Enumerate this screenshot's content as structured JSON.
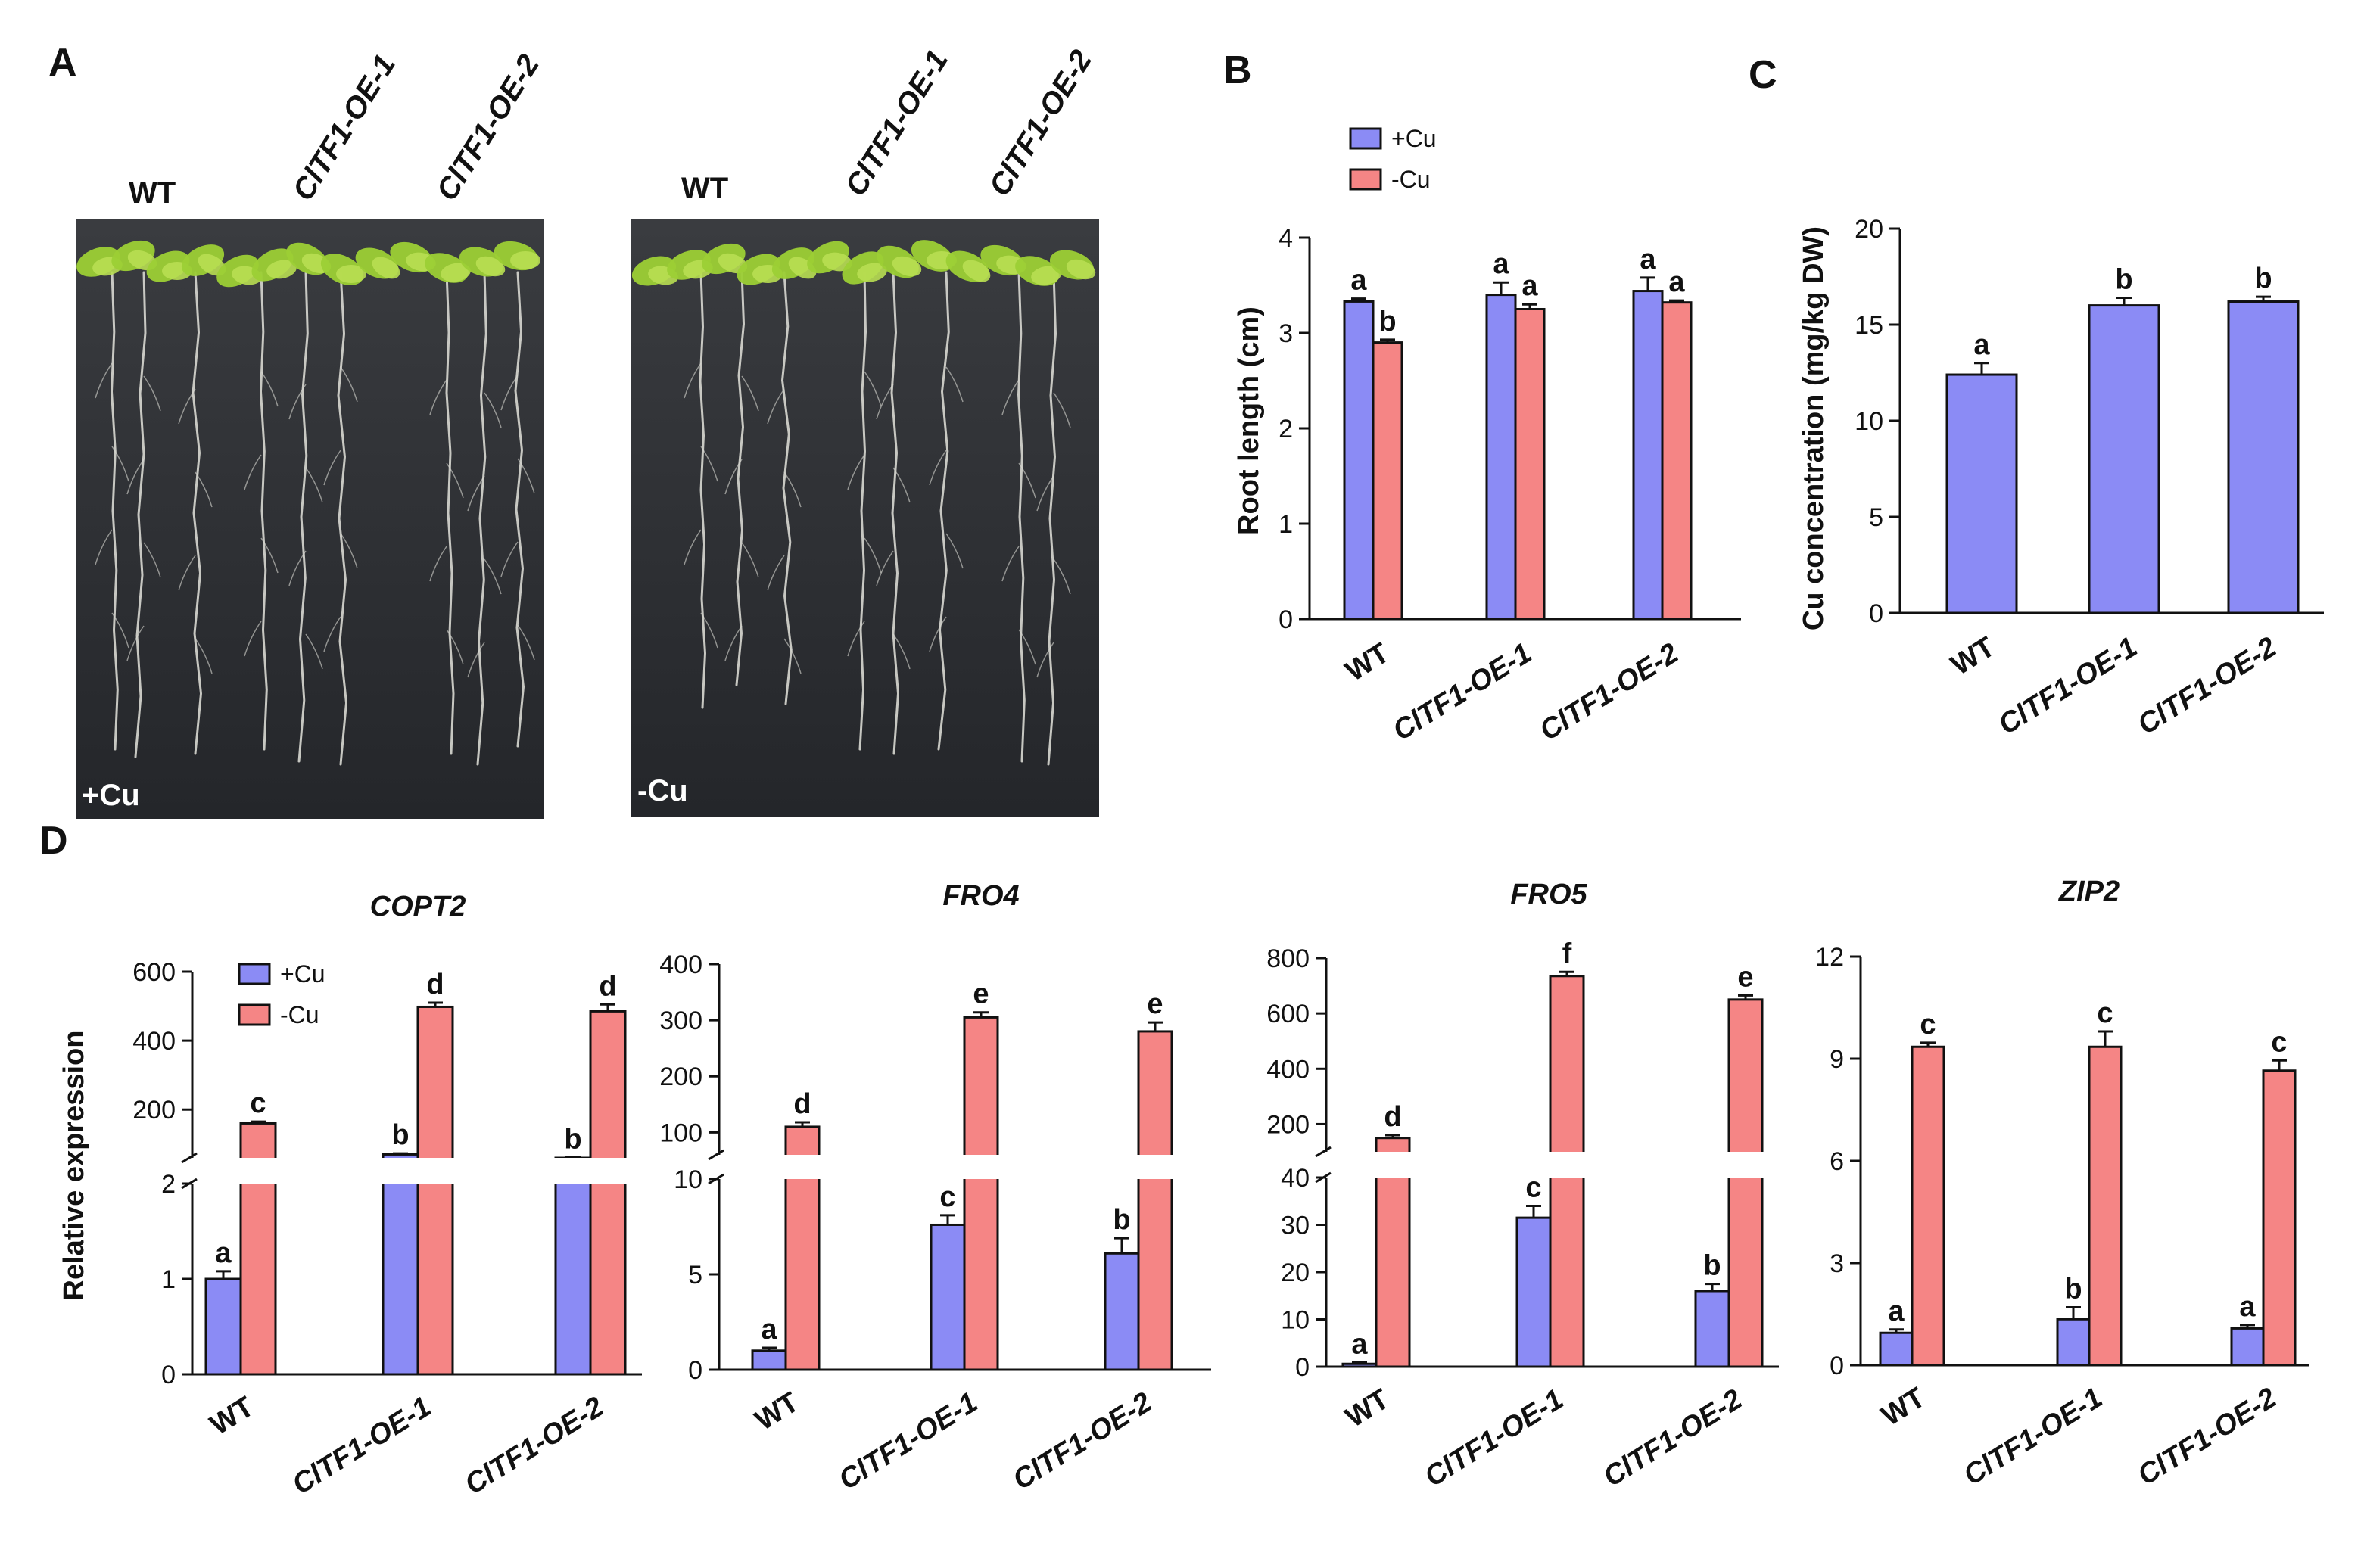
{
  "panels": {
    "A": "A",
    "B": "B",
    "C": "C",
    "D": "D"
  },
  "colors": {
    "plus_cu": "#8b8bf5",
    "minus_cu": "#f58585",
    "photo_bg": "#2b2d30",
    "leaf": "#9ccf35",
    "root": "#d8d8d2"
  },
  "panel_a": {
    "genotype_labels": [
      "WT",
      "ClTF1-OE-1",
      "ClTF1-OE-2"
    ],
    "photos": [
      {
        "label": "+Cu"
      },
      {
        "label": "-Cu"
      }
    ]
  },
  "chart_data": [
    {
      "id": "B",
      "type": "bar",
      "title": "",
      "categories": [
        "WT",
        "ClTF1-OE-1",
        "ClTF1-OE-2"
      ],
      "series": [
        {
          "name": "+Cu",
          "values": [
            3.33,
            3.4,
            3.44
          ],
          "errors": [
            0.03,
            0.13,
            0.14
          ],
          "letters": [
            "a",
            "a",
            "a"
          ]
        },
        {
          "name": "-Cu",
          "values": [
            2.9,
            3.25,
            3.32
          ],
          "errors": [
            0.03,
            0.05,
            0.02
          ],
          "letters": [
            "b",
            "a",
            "a"
          ]
        }
      ],
      "ylabel": "Root length (cm)",
      "ylim": [
        0,
        4
      ],
      "yticks": [
        0,
        1,
        2,
        3,
        4
      ],
      "ytick_labels": [
        "0",
        "1",
        "2",
        "3",
        "4"
      ],
      "legend": "top-left"
    },
    {
      "id": "C",
      "type": "bar",
      "title": "",
      "categories": [
        "WT",
        "ClTF1-OE-1",
        "ClTF1-OE-2"
      ],
      "series": [
        {
          "name": "+Cu",
          "values": [
            12.4,
            16.0,
            16.2
          ],
          "errors": [
            0.6,
            0.4,
            0.25
          ],
          "letters": [
            "a",
            "b",
            "b"
          ]
        }
      ],
      "ylabel": "Cu concentration (mg/kg DW)",
      "ylim": [
        0,
        20
      ],
      "yticks": [
        0,
        5,
        10,
        15,
        20
      ],
      "ytick_labels": [
        "0",
        "5",
        "10",
        "15",
        "20"
      ]
    },
    {
      "id": "D1",
      "type": "bar",
      "title": "COPT2",
      "categories": [
        "WT",
        "ClTF1-OE-1",
        "ClTF1-OE-2"
      ],
      "series": [
        {
          "name": "+Cu",
          "values": [
            1.0,
            70,
            58
          ],
          "errors": [
            0.08,
            3,
            3
          ],
          "letters": [
            "a",
            "b",
            "b"
          ]
        },
        {
          "name": "-Cu",
          "values": [
            160,
            498,
            485
          ],
          "errors": [
            5,
            12,
            20
          ],
          "letters": [
            "c",
            "d",
            "d"
          ]
        }
      ],
      "ylabel": "Relative expression",
      "broken_axis": {
        "lower": [
          0,
          2
        ],
        "upper": [
          60,
          600
        ]
      },
      "yticks": [
        0,
        1,
        2,
        200,
        400,
        600
      ],
      "ytick_labels": [
        "0",
        "1",
        "2",
        "200",
        "400",
        "600"
      ],
      "legend": "top-left"
    },
    {
      "id": "D2",
      "type": "bar",
      "title": "FRO4",
      "categories": [
        "WT",
        "ClTF1-OE-1",
        "ClTF1-OE-2"
      ],
      "series": [
        {
          "name": "+Cu",
          "values": [
            1.0,
            7.6,
            6.1
          ],
          "errors": [
            0.15,
            0.5,
            0.8
          ],
          "letters": [
            "a",
            "c",
            "b"
          ]
        },
        {
          "name": "-Cu",
          "values": [
            110,
            305,
            280
          ],
          "errors": [
            8,
            9,
            16
          ],
          "letters": [
            "d",
            "e",
            "e"
          ]
        }
      ],
      "broken_axis": {
        "lower": [
          0,
          10
        ],
        "upper": [
          60,
          400
        ]
      },
      "yticks": [
        0,
        5,
        10,
        100,
        200,
        300,
        400
      ],
      "ytick_labels": [
        "0",
        "5",
        "10",
        "100",
        "200",
        "300",
        "400"
      ]
    },
    {
      "id": "D3",
      "type": "bar",
      "title": "FRO5",
      "categories": [
        "WT",
        "ClTF1-OE-1",
        "ClTF1-OE-2"
      ],
      "series": [
        {
          "name": "+Cu",
          "values": [
            0.6,
            31.5,
            16.0
          ],
          "errors": [
            0.3,
            2.5,
            1.5
          ],
          "letters": [
            "a",
            "c",
            "b"
          ]
        },
        {
          "name": "-Cu",
          "values": [
            150,
            735,
            650
          ],
          "errors": [
            10,
            15,
            15
          ],
          "letters": [
            "d",
            "f",
            "e"
          ]
        }
      ],
      "broken_axis": {
        "lower": [
          0,
          40
        ],
        "upper": [
          100,
          800
        ]
      },
      "yticks": [
        0,
        10,
        20,
        30,
        40,
        200,
        400,
        600,
        800
      ],
      "ytick_labels": [
        "0",
        "10",
        "20",
        "30",
        "40",
        "200",
        "400",
        "600",
        "800"
      ]
    },
    {
      "id": "D4",
      "type": "bar",
      "title": "ZIP2",
      "categories": [
        "WT",
        "ClTF1-OE-1",
        "ClTF1-OE-2"
      ],
      "series": [
        {
          "name": "+Cu",
          "values": [
            0.95,
            1.35,
            1.08
          ],
          "errors": [
            0.1,
            0.35,
            0.1
          ],
          "letters": [
            "a",
            "b",
            "a"
          ]
        },
        {
          "name": "-Cu",
          "values": [
            9.35,
            9.35,
            8.65
          ],
          "errors": [
            0.12,
            0.45,
            0.3
          ],
          "letters": [
            "c",
            "c",
            "c"
          ]
        }
      ],
      "ylim": [
        0,
        12
      ],
      "yticks": [
        0,
        3,
        6,
        9,
        12
      ],
      "ytick_labels": [
        "0",
        "3",
        "6",
        "9",
        "12"
      ]
    }
  ]
}
